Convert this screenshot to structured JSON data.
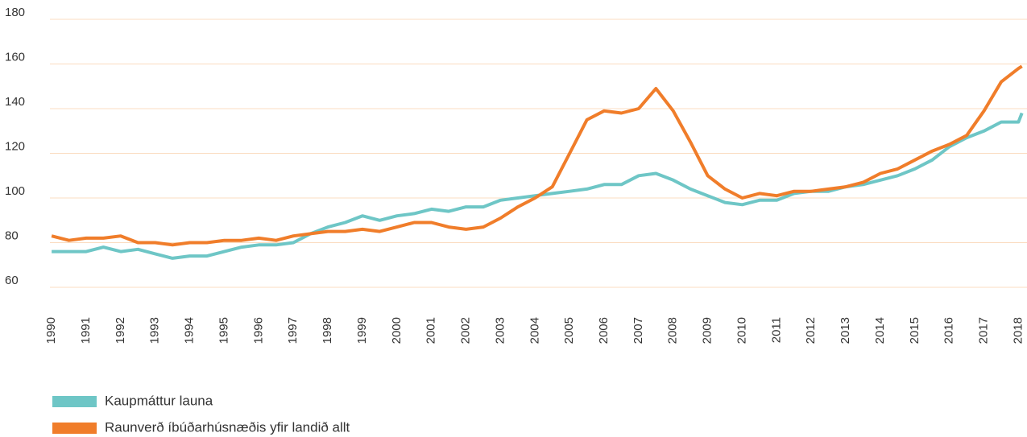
{
  "chart_data": {
    "type": "line",
    "x": [
      1990,
      1990.5,
      1991,
      1991.5,
      1992,
      1992.5,
      1993,
      1993.5,
      1994,
      1994.5,
      1995,
      1995.5,
      1996,
      1996.5,
      1997,
      1997.5,
      1998,
      1998.5,
      1999,
      1999.5,
      2000,
      2000.5,
      2001,
      2001.5,
      2002,
      2002.5,
      2003,
      2003.5,
      2004,
      2004.5,
      2005,
      2005.5,
      2006,
      2006.5,
      2007,
      2007.5,
      2008,
      2008.5,
      2009,
      2009.5,
      2010,
      2010.5,
      2011,
      2011.5,
      2012,
      2012.5,
      2013,
      2013.5,
      2014,
      2014.5,
      2015,
      2015.5,
      2016,
      2016.5,
      2017,
      2017.5,
      2018,
      2018.1
    ],
    "series": [
      {
        "name": "Kaupmáttur launa",
        "color": "#6ec6c6",
        "values": [
          76,
          76,
          76,
          78,
          76,
          77,
          75,
          73,
          74,
          74,
          76,
          78,
          79,
          79,
          80,
          84,
          87,
          89,
          92,
          90,
          92,
          93,
          95,
          94,
          96,
          96,
          99,
          100,
          101,
          102,
          103,
          104,
          106,
          106,
          110,
          111,
          108,
          104,
          101,
          98,
          97,
          99,
          99,
          102,
          103,
          103,
          105,
          106,
          108,
          110,
          113,
          117,
          123,
          127,
          130,
          134,
          134,
          138
        ]
      },
      {
        "name": "Raunverð íbúðarhúsnæðis yfir landið allt",
        "color": "#f07d2a",
        "values": [
          83,
          81,
          82,
          82,
          83,
          80,
          80,
          79,
          80,
          80,
          81,
          81,
          82,
          81,
          83,
          84,
          85,
          85,
          86,
          85,
          87,
          89,
          89,
          87,
          86,
          87,
          91,
          96,
          100,
          105,
          120,
          135,
          139,
          138,
          140,
          149,
          139,
          125,
          110,
          104,
          100,
          102,
          101,
          103,
          103,
          104,
          105,
          107,
          111,
          113,
          117,
          121,
          124,
          128,
          139,
          152,
          158,
          159
        ]
      }
    ],
    "xlim": [
      1989.95,
      2018.2
    ],
    "xticks": [
      1990,
      1991,
      1992,
      1993,
      1994,
      1995,
      1996,
      1997,
      1998,
      1999,
      2000,
      2001,
      2002,
      2003,
      2004,
      2005,
      2006,
      2007,
      2008,
      2009,
      2010,
      2011,
      2012,
      2013,
      2014,
      2015,
      2016,
      2017,
      2018
    ],
    "ylim": [
      60,
      180
    ],
    "yticks": [
      60,
      80,
      100,
      120,
      140,
      160,
      180
    ],
    "grid": true
  }
}
